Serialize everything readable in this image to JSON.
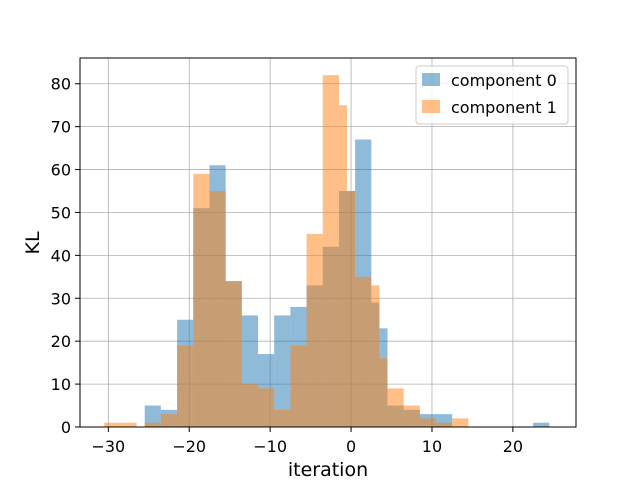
{
  "chart_data": {
    "type": "histogram",
    "xlabel": "iteration",
    "ylabel": "KL",
    "xlim": [
      -33.5,
      27.8
    ],
    "ylim": [
      0,
      86
    ],
    "xticks": [
      -30,
      -20,
      -10,
      0,
      10,
      20
    ],
    "yticks": [
      0,
      10,
      20,
      30,
      40,
      50,
      60,
      70,
      80
    ],
    "xtick_labels": [
      "−30",
      "−20",
      "−10",
      "0",
      "10",
      "20"
    ],
    "ytick_labels": [
      "0",
      "10",
      "20",
      "30",
      "40",
      "50",
      "60",
      "70",
      "80"
    ],
    "grid": true,
    "legend_position": "upper right",
    "series": [
      {
        "name": "component 0",
        "color": "#1f77b4",
        "opacity": 0.5,
        "bin_edges": [
          -25.5,
          -23.5,
          -21.5,
          -19.5,
          -17.5,
          -15.5,
          -14.5,
          -13.5,
          -11.5,
          -9.5,
          -7.5,
          -5.5,
          -3.5,
          -1.5,
          -0.5,
          0.5,
          2.5,
          3.5,
          4.5,
          6.5,
          8.5,
          10.5,
          12.5,
          14.5,
          16.5,
          18.5,
          20.5,
          22.5,
          24.5
        ],
        "counts": [
          5,
          4,
          25,
          51,
          61,
          34,
          34,
          26,
          17,
          26,
          28,
          33,
          42,
          55,
          55,
          67,
          29,
          23,
          5,
          4,
          3,
          3,
          0,
          0,
          0,
          0,
          0,
          1
        ]
      },
      {
        "name": "component 1",
        "color": "#ff7f0e",
        "opacity": 0.5,
        "bin_edges": [
          -30.5,
          -26.5,
          -25.5,
          -23.5,
          -21.5,
          -19.5,
          -17.5,
          -15.5,
          -13.5,
          -11.5,
          -9.5,
          -7.5,
          -5.5,
          -3.5,
          -1.5,
          -0.5,
          0.5,
          2.5,
          3.5,
          4.5,
          6.5,
          8.5,
          10.5,
          12.5,
          14.5
        ],
        "counts": [
          1,
          0,
          1,
          3,
          19,
          59,
          55,
          34,
          10,
          9,
          4,
          19,
          45,
          82,
          75,
          55,
          35,
          33,
          16,
          9,
          5,
          2,
          1,
          2
        ]
      }
    ]
  }
}
